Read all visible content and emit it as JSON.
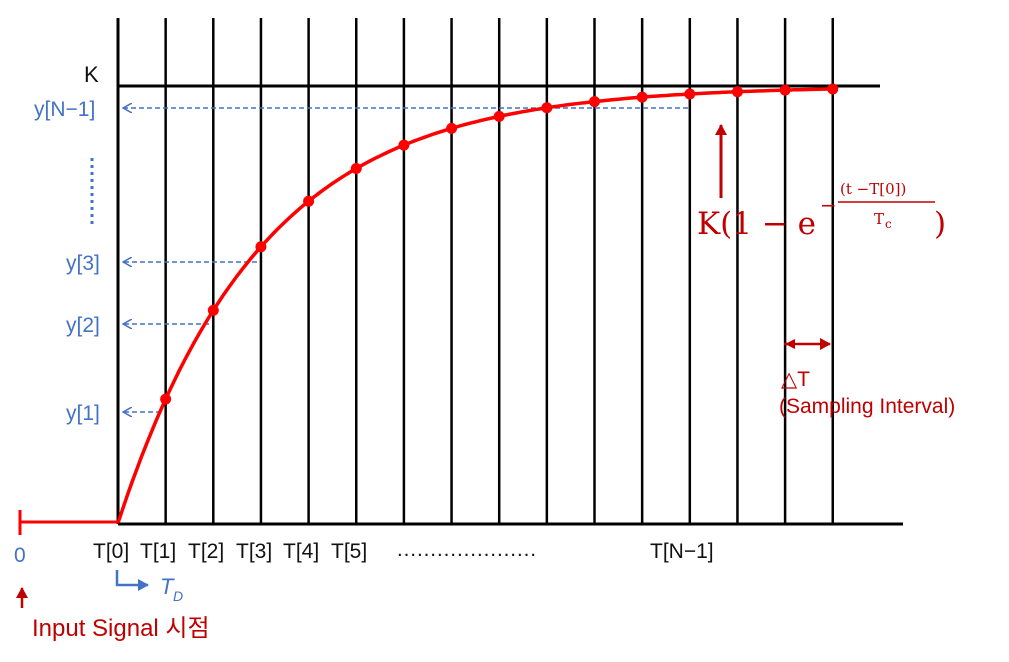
{
  "colors": {
    "curve": "#ff0000",
    "point": "#ff0000",
    "axis": "#000000",
    "blue_label": "#4472c4",
    "red_label": "#c00000"
  },
  "labels": {
    "k_label": "K",
    "y_labels": [
      "y[N−1]",
      "y[3]",
      "y[2]",
      "y[1]"
    ],
    "origin_label": "0",
    "t_labels": [
      "T[0]",
      "T[1]",
      "T[2]",
      "T[3]",
      "T[4]",
      "T[5]",
      "T[N−1]"
    ],
    "t_dots": "…………………",
    "td_label": "T",
    "td_sub": "D",
    "input_signal": "Input Signal 시점",
    "delta_t": "△T",
    "sampling_interval": "(Sampling Interval)"
  },
  "formula": {
    "prefix": "K(1 − e",
    "minus": "−",
    "numerator": "(t −T[0])",
    "denominator": "T",
    "denominator_sub": "c",
    "suffix": ")"
  }
}
